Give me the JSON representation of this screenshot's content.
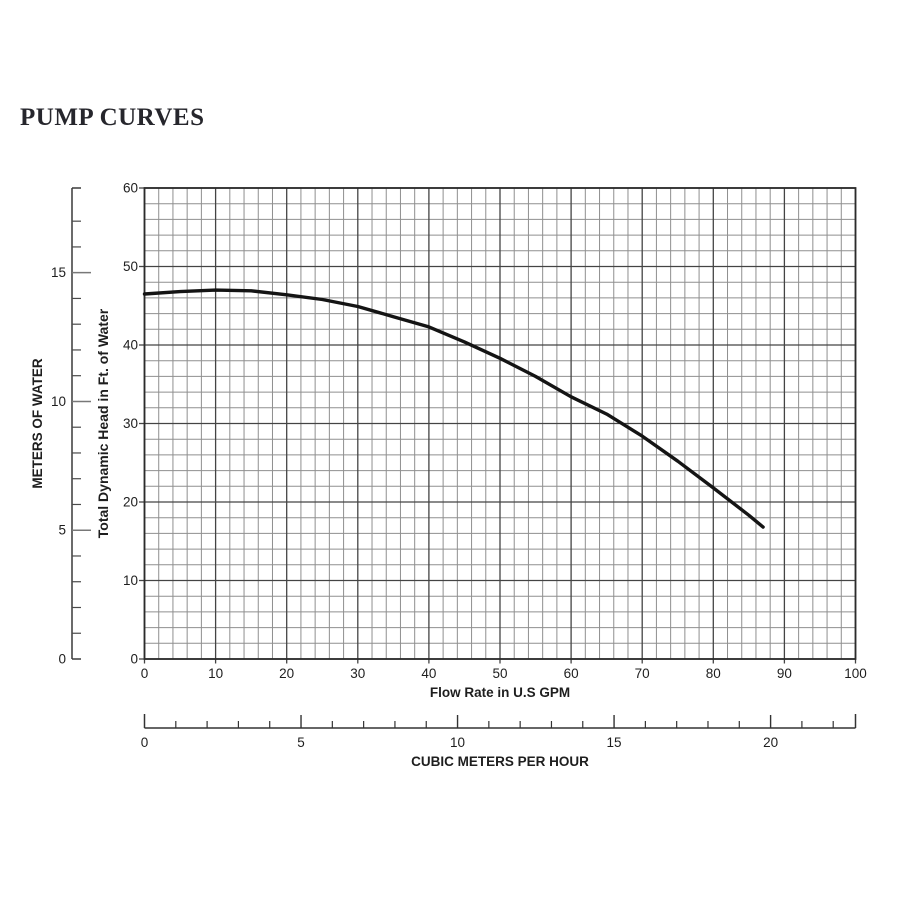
{
  "page": {
    "title": "PUMP CURVES"
  },
  "chart_data": {
    "type": "line",
    "title": "PUMP CURVES",
    "grid": true,
    "x_axis": {
      "label": "Flow Rate in U.S GPM",
      "min": 0,
      "max": 100,
      "major_step": 10,
      "minor_step": 2,
      "tick_labels": [
        "0",
        "10",
        "20",
        "30",
        "40",
        "50",
        "60",
        "70",
        "80",
        "90",
        "100"
      ]
    },
    "y_axis": {
      "label": "Total Dynamic Head in Ft. of Water",
      "min": 0,
      "max": 60,
      "major_step": 10,
      "minor_step": 2,
      "tick_labels": [
        "0",
        "10",
        "20",
        "30",
        "40",
        "50",
        "60"
      ]
    },
    "x2_axis": {
      "label": "CUBIC METERS PER HOUR",
      "min": 0,
      "max": 22.7,
      "major_step": 5,
      "minor_step": 1,
      "gpm_per_unit": 4.4029,
      "tick_labels": [
        "0",
        "5",
        "10",
        "15",
        "20"
      ]
    },
    "y2_axis": {
      "label": "METERS OF WATER",
      "min": 0,
      "max": 18.29,
      "major_step": 5,
      "minor_step": 1,
      "ft_per_unit": 3.2808,
      "tick_labels": [
        "0",
        "5",
        "10",
        "15"
      ]
    },
    "series": [
      {
        "name": "pump curve",
        "x": [
          0,
          5,
          10,
          15,
          20,
          25,
          30,
          35,
          40,
          45,
          50,
          55,
          60,
          65,
          70,
          75,
          80,
          85,
          87
        ],
        "y": [
          46.5,
          46.8,
          47.0,
          46.9,
          46.4,
          45.8,
          44.9,
          43.6,
          42.3,
          40.4,
          38.3,
          36.0,
          33.4,
          31.2,
          28.4,
          25.2,
          21.8,
          18.3,
          16.8
        ]
      }
    ],
    "colors": {
      "curve": "#141414",
      "grid_minor": "#8f8f8f",
      "grid_major": "#444444",
      "frame": "#2b2b2b",
      "text": "#1e1e1e",
      "ruler": "#3a3a3a",
      "ruler_major": "#787878"
    }
  }
}
